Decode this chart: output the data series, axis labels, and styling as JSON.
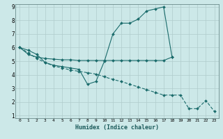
{
  "xlabel": "Humidex (Indice chaleur)",
  "xlim": [
    -0.5,
    23.5
  ],
  "ylim": [
    0.8,
    9.2
  ],
  "yticks": [
    1,
    2,
    3,
    4,
    5,
    6,
    7,
    8,
    9
  ],
  "xticks": [
    0,
    1,
    2,
    3,
    4,
    5,
    6,
    7,
    8,
    9,
    10,
    11,
    12,
    13,
    14,
    15,
    16,
    17,
    18,
    19,
    20,
    21,
    22,
    23
  ],
  "line_color": "#1a6b6b",
  "bg_color": "#cce8e8",
  "grid_color": "#b0cccc",
  "line1_x": [
    0,
    1,
    2,
    3,
    4,
    5,
    6,
    7,
    8,
    9,
    10,
    11,
    12,
    13,
    14,
    15,
    16,
    17,
    18
  ],
  "line1_y": [
    6.0,
    5.8,
    5.5,
    4.9,
    4.7,
    4.6,
    4.5,
    4.4,
    3.3,
    3.5,
    5.0,
    7.0,
    7.8,
    7.8,
    8.1,
    8.7,
    8.85,
    9.0,
    5.3
  ],
  "line2_x": [
    0,
    1,
    2,
    3,
    4,
    5,
    6,
    7,
    8,
    9,
    10,
    11,
    12,
    13,
    14,
    15,
    16,
    17,
    18
  ],
  "line2_y": [
    6.0,
    5.5,
    5.3,
    5.2,
    5.15,
    5.1,
    5.1,
    5.05,
    5.05,
    5.05,
    5.05,
    5.05,
    5.05,
    5.05,
    5.05,
    5.05,
    5.05,
    5.05,
    5.3
  ],
  "line3_x": [
    0,
    1,
    2,
    3,
    4,
    5,
    6,
    7,
    8,
    9,
    10,
    11,
    12,
    13,
    14,
    15,
    16,
    17,
    18,
    19,
    20,
    21,
    22,
    23
  ],
  "line3_y": [
    6.0,
    5.6,
    5.2,
    4.9,
    4.65,
    4.5,
    4.35,
    4.25,
    4.15,
    4.05,
    3.85,
    3.65,
    3.5,
    3.3,
    3.1,
    2.9,
    2.7,
    2.5,
    2.5,
    2.5,
    1.5,
    1.5,
    2.1,
    1.3
  ]
}
